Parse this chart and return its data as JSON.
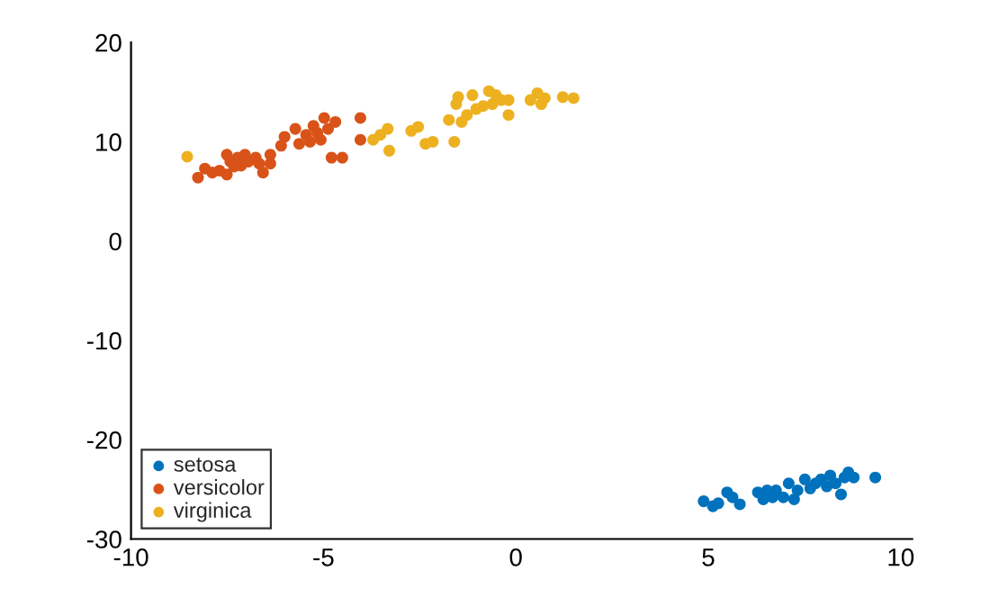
{
  "chart_data": {
    "type": "scatter",
    "xlim": [
      -10,
      10.3
    ],
    "ylim": [
      -30,
      20
    ],
    "xticks": [
      -10,
      -5,
      0,
      5,
      10
    ],
    "yticks": [
      -30,
      -20,
      -10,
      0,
      10,
      20
    ],
    "grid": false,
    "legend": "bottom left",
    "marker": "circle",
    "series": [
      {
        "name": "setosa",
        "color": "#0072bd",
        "x": [
          4.88,
          5.12,
          5.26,
          5.49,
          5.63,
          5.73,
          5.82,
          6.29,
          6.43,
          6.53,
          6.67,
          6.76,
          6.95,
          7.09,
          7.23,
          7.32,
          7.51,
          7.65,
          7.79,
          7.93,
          8.08,
          8.17,
          8.31,
          8.45,
          8.54,
          8.64,
          8.78,
          9.34
        ],
        "values": [
          -26.2,
          -26.7,
          -26.4,
          -25.3,
          -25.8,
          null,
          -26.5,
          -25.3,
          -26.0,
          -25.1,
          -25.8,
          -25.1,
          -25.8,
          -24.4,
          -26.0,
          -25.1,
          -24.0,
          -24.9,
          -24.4,
          -24.0,
          -24.7,
          -23.6,
          -24.4,
          -25.5,
          -23.8,
          -23.3,
          -23.8,
          -23.8
        ]
      },
      {
        "name": "versicolor",
        "color": "#d95319",
        "x": [
          -8.26,
          -8.08,
          -7.89,
          -7.7,
          -7.51,
          -7.51,
          -7.42,
          -7.32,
          -7.23,
          -7.14,
          -7.04,
          -6.95,
          -6.85,
          -6.76,
          -6.67,
          -6.57,
          -6.48,
          -6.38,
          -6.38,
          -6.1,
          -6.01,
          -5.73,
          -5.63,
          -5.45,
          -5.35,
          -5.26,
          -5.16,
          -5.07,
          -4.98,
          -4.88,
          -4.79,
          -4.69,
          -4.51,
          -4.04,
          -4.04
        ],
        "values": [
          6.4,
          7.3,
          6.9,
          7.1,
          6.7,
          8.7,
          8.0,
          7.5,
          8.4,
          7.6,
          8.7,
          8.0,
          null,
          8.4,
          7.8,
          6.9,
          null,
          8.7,
          7.8,
          9.6,
          10.5,
          11.3,
          9.8,
          10.7,
          10.0,
          11.6,
          10.9,
          10.2,
          12.4,
          11.3,
          8.4,
          12.0,
          8.4,
          12.4,
          10.2
        ]
      },
      {
        "name": "virginica",
        "color": "#edb120",
        "x": [
          -8.54,
          -3.71,
          -3.52,
          -3.33,
          -3.29,
          -2.72,
          -2.54,
          -2.35,
          -2.16,
          -1.74,
          -1.6,
          -1.55,
          -1.5,
          -1.41,
          -1.27,
          -1.13,
          -1.03,
          -0.85,
          -0.7,
          -0.61,
          -0.52,
          -0.38,
          -0.19,
          -0.19,
          0.38,
          0.56,
          0.66,
          0.75,
          1.22,
          1.41,
          1.5
        ],
        "values": [
          8.5,
          10.2,
          10.7,
          11.3,
          9.1,
          11.1,
          11.5,
          9.8,
          10.0,
          12.2,
          10.0,
          13.8,
          14.5,
          12.0,
          12.7,
          14.7,
          13.3,
          13.6,
          15.1,
          13.8,
          14.7,
          14.2,
          14.2,
          12.7,
          14.2,
          14.9,
          13.8,
          14.4,
          14.5,
          null,
          14.4
        ]
      }
    ]
  }
}
